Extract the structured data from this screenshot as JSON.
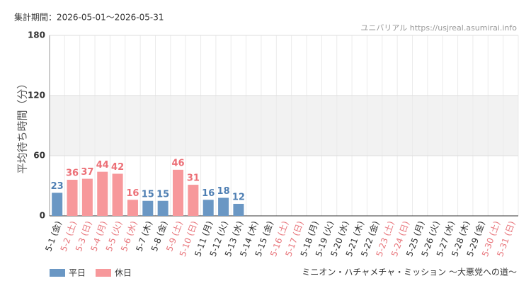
{
  "chart_data": {
    "type": "bar",
    "period": "集計期間：2026-05-01～2026-05-31",
    "source": "ユニバリアル https://usjreal.asumirai.info",
    "ylabel": "平均待ち時間（分）",
    "attraction": "ミニオン・ハチャメチャ・ミッション ～大悪党への道～",
    "categories": [
      "5-1 (金)",
      "5-2 (土)",
      "5-3 (日)",
      "5-4 (月)",
      "5-5 (火)",
      "5-6 (水)",
      "5-7 (木)",
      "5-8 (金)",
      "5-9 (土)",
      "5-10 (日)",
      "5-11 (月)",
      "5-12 (火)",
      "5-13 (水)",
      "5-14 (木)",
      "5-15 (金)",
      "5-16 (土)",
      "5-17 (日)",
      "5-18 (月)",
      "5-19 (火)",
      "5-20 (水)",
      "5-21 (木)",
      "5-22 (金)",
      "5-23 (土)",
      "5-24 (日)",
      "5-25 (月)",
      "5-26 (火)",
      "5-27 (水)",
      "5-28 (木)",
      "5-29 (金)",
      "5-30 (土)",
      "5-31 (日)"
    ],
    "category_colors": [
      "#333",
      "#e8757b",
      "#e8757b",
      "#e8757b",
      "#e8757b",
      "#e8757b",
      "#333",
      "#333",
      "#e8757b",
      "#e8757b",
      "#333",
      "#333",
      "#333",
      "#333",
      "#333",
      "#e8757b",
      "#e8757b",
      "#333",
      "#333",
      "#333",
      "#333",
      "#333",
      "#e8757b",
      "#e8757b",
      "#333",
      "#333",
      "#333",
      "#333",
      "#333",
      "#e8757b",
      "#e8757b"
    ],
    "series": [
      {
        "name": "平日",
        "color": "#6a97c4",
        "label_color": "#4f7fb3",
        "values": [
          23,
          null,
          null,
          null,
          null,
          null,
          15,
          15,
          null,
          null,
          16,
          18,
          12,
          null,
          null,
          null,
          null,
          null,
          null,
          null,
          null,
          null,
          null,
          null,
          null,
          null,
          null,
          null,
          null,
          null,
          null
        ]
      },
      {
        "name": "休日",
        "color": "#f7989b",
        "label_color": "#ec6f76",
        "values": [
          null,
          36,
          37,
          44,
          42,
          16,
          null,
          null,
          46,
          31,
          null,
          null,
          null,
          null,
          null,
          null,
          null,
          null,
          null,
          null,
          null,
          null,
          null,
          null,
          null,
          null,
          null,
          null,
          null,
          null,
          null
        ]
      }
    ],
    "ylim": [
      0,
      180
    ],
    "yticks": [
      0,
      60,
      120,
      180
    ],
    "grid": true
  }
}
